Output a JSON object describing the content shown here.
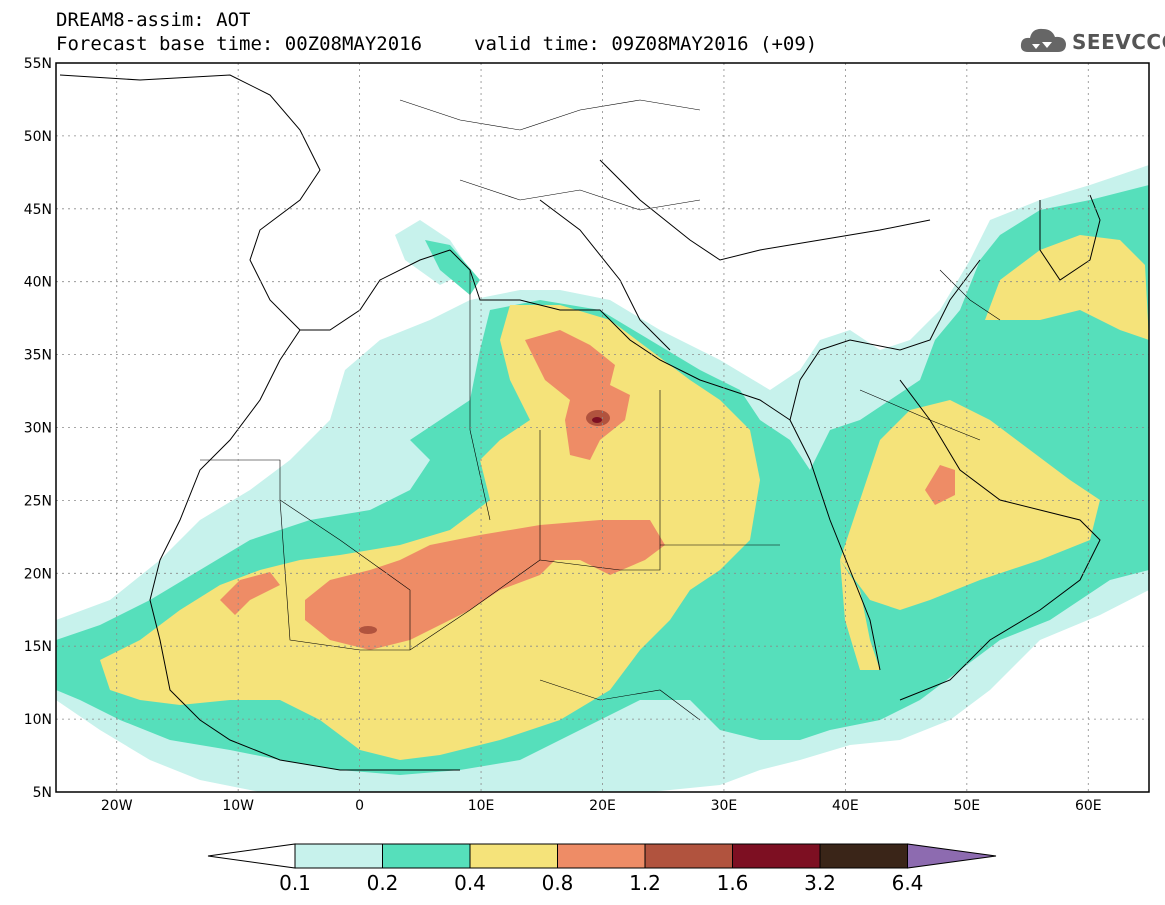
{
  "title": {
    "line1": "DREAM8-assim: AOT",
    "base_time": "Forecast base time: 00Z08MAY2016",
    "valid_time": "valid time: 09Z08MAY2016 (+09)"
  },
  "logo": {
    "text": "SEEVCCC",
    "icon": "cloud-icon"
  },
  "map": {
    "lon_range": [
      -25,
      65
    ],
    "lat_range": [
      5,
      55
    ],
    "lat_ticks": [
      "5N",
      "10N",
      "15N",
      "20N",
      "25N",
      "30N",
      "35N",
      "40N",
      "45N",
      "50N",
      "55N"
    ],
    "lon_ticks": [
      "20W",
      "10W",
      "0",
      "10E",
      "20E",
      "30E",
      "40E",
      "50E",
      "60E"
    ],
    "grid": "dotted"
  },
  "colorbar": {
    "labels": [
      "0.1",
      "0.2",
      "0.4",
      "0.8",
      "1.2",
      "1.6",
      "3.2",
      "6.4"
    ],
    "colors": [
      "#c7f2ec",
      "#56dfbb",
      "#f5e37a",
      "#ee8c66",
      "#b1533e",
      "#7d0f22",
      "#3a2518",
      "#8d6bb0"
    ],
    "under_color": "#ffffff"
  },
  "palette": {
    "c1": "#c7f2ec",
    "c2": "#56dfbb",
    "c3": "#f5e37a",
    "c4": "#ee8c66",
    "c5": "#b1533e",
    "c6": "#7d0f22"
  }
}
